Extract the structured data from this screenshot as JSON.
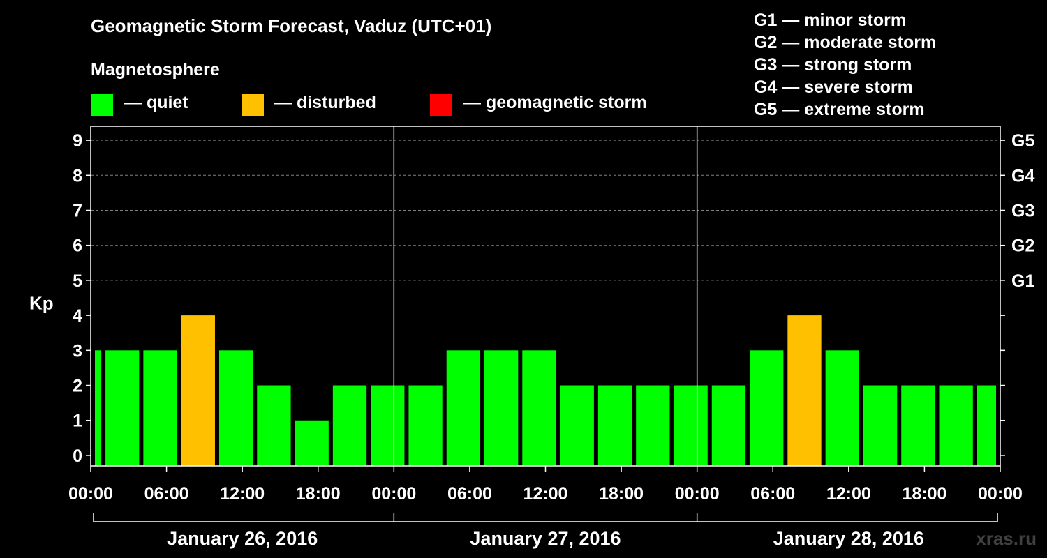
{
  "header": {
    "title": "Geomagnetic Storm Forecast, Vaduz (UTC+01)",
    "magnetosphere_label": "Magnetosphere"
  },
  "legend": [
    {
      "label": "— quiet",
      "color": "#00ff00"
    },
    {
      "label": "— disturbed",
      "color": "#ffc000"
    },
    {
      "label": "— geomagnetic storm",
      "color": "#ff0000"
    }
  ],
  "storm_scale": [
    "G1 — minor storm",
    "G2 — moderate storm",
    "G3 — strong storm",
    "G4 — severe storm",
    "G5 — extreme storm"
  ],
  "watermark": "xras.ru",
  "colors": {
    "background": "#000000",
    "quiet": "#00ff00",
    "disturbed": "#ffc000",
    "storm": "#ff0000",
    "axis": "#ffffff",
    "grid": "#808080"
  },
  "chart_data": {
    "type": "bar",
    "title": "Geomagnetic Storm Forecast, Vaduz (UTC+01)",
    "ylabel": "Kp",
    "ylim": [
      -0.3,
      9.4
    ],
    "yticks": [
      0,
      1,
      2,
      3,
      4,
      5,
      6,
      7,
      8,
      9
    ],
    "y2_labels": [
      {
        "y": 5,
        "label": "G1"
      },
      {
        "y": 6,
        "label": "G2"
      },
      {
        "y": 7,
        "label": "G3"
      },
      {
        "y": 8,
        "label": "G4"
      },
      {
        "y": 9,
        "label": "G5"
      }
    ],
    "gridlines_at": [
      5,
      6,
      7,
      8,
      9
    ],
    "x_range_hours": [
      0,
      72
    ],
    "bars": [
      {
        "start_hour": 0,
        "end_hour": 1,
        "kp": 3,
        "level": "quiet"
      },
      {
        "start_hour": 1,
        "end_hour": 4,
        "kp": 3,
        "level": "quiet"
      },
      {
        "start_hour": 4,
        "end_hour": 7,
        "kp": 3,
        "level": "quiet"
      },
      {
        "start_hour": 7,
        "end_hour": 10,
        "kp": 4,
        "level": "disturbed"
      },
      {
        "start_hour": 10,
        "end_hour": 13,
        "kp": 3,
        "level": "quiet"
      },
      {
        "start_hour": 13,
        "end_hour": 16,
        "kp": 2,
        "level": "quiet"
      },
      {
        "start_hour": 16,
        "end_hour": 19,
        "kp": 1,
        "level": "quiet"
      },
      {
        "start_hour": 19,
        "end_hour": 22,
        "kp": 2,
        "level": "quiet"
      },
      {
        "start_hour": 22,
        "end_hour": 25,
        "kp": 2,
        "level": "quiet"
      },
      {
        "start_hour": 25,
        "end_hour": 28,
        "kp": 2,
        "level": "quiet"
      },
      {
        "start_hour": 28,
        "end_hour": 31,
        "kp": 3,
        "level": "quiet"
      },
      {
        "start_hour": 31,
        "end_hour": 34,
        "kp": 3,
        "level": "quiet"
      },
      {
        "start_hour": 34,
        "end_hour": 37,
        "kp": 3,
        "level": "quiet"
      },
      {
        "start_hour": 37,
        "end_hour": 40,
        "kp": 2,
        "level": "quiet"
      },
      {
        "start_hour": 40,
        "end_hour": 43,
        "kp": 2,
        "level": "quiet"
      },
      {
        "start_hour": 43,
        "end_hour": 46,
        "kp": 2,
        "level": "quiet"
      },
      {
        "start_hour": 46,
        "end_hour": 49,
        "kp": 2,
        "level": "quiet"
      },
      {
        "start_hour": 49,
        "end_hour": 52,
        "kp": 2,
        "level": "quiet"
      },
      {
        "start_hour": 52,
        "end_hour": 55,
        "kp": 3,
        "level": "quiet"
      },
      {
        "start_hour": 55,
        "end_hour": 58,
        "kp": 4,
        "level": "disturbed"
      },
      {
        "start_hour": 58,
        "end_hour": 61,
        "kp": 3,
        "level": "quiet"
      },
      {
        "start_hour": 61,
        "end_hour": 64,
        "kp": 2,
        "level": "quiet"
      },
      {
        "start_hour": 64,
        "end_hour": 67,
        "kp": 2,
        "level": "quiet"
      },
      {
        "start_hour": 67,
        "end_hour": 70,
        "kp": 2,
        "level": "quiet"
      },
      {
        "start_hour": 70,
        "end_hour": 72,
        "kp": 2,
        "level": "quiet"
      }
    ],
    "x_ticks": [
      {
        "hour": 0,
        "label": "00:00"
      },
      {
        "hour": 6,
        "label": "06:00"
      },
      {
        "hour": 12,
        "label": "12:00"
      },
      {
        "hour": 18,
        "label": "18:00"
      },
      {
        "hour": 24,
        "label": "00:00"
      },
      {
        "hour": 30,
        "label": "06:00"
      },
      {
        "hour": 36,
        "label": "12:00"
      },
      {
        "hour": 42,
        "label": "18:00"
      },
      {
        "hour": 48,
        "label": "00:00"
      },
      {
        "hour": 54,
        "label": "06:00"
      },
      {
        "hour": 60,
        "label": "12:00"
      },
      {
        "hour": 66,
        "label": "18:00"
      },
      {
        "hour": 72,
        "label": "00:00"
      }
    ],
    "day_dividers_hours": [
      24,
      48
    ],
    "days": [
      {
        "start_hour": 0,
        "end_hour": 24,
        "label": "January 26, 2016"
      },
      {
        "start_hour": 24,
        "end_hour": 48,
        "label": "January 27, 2016"
      },
      {
        "start_hour": 48,
        "end_hour": 72,
        "label": "January 28, 2016"
      }
    ]
  }
}
